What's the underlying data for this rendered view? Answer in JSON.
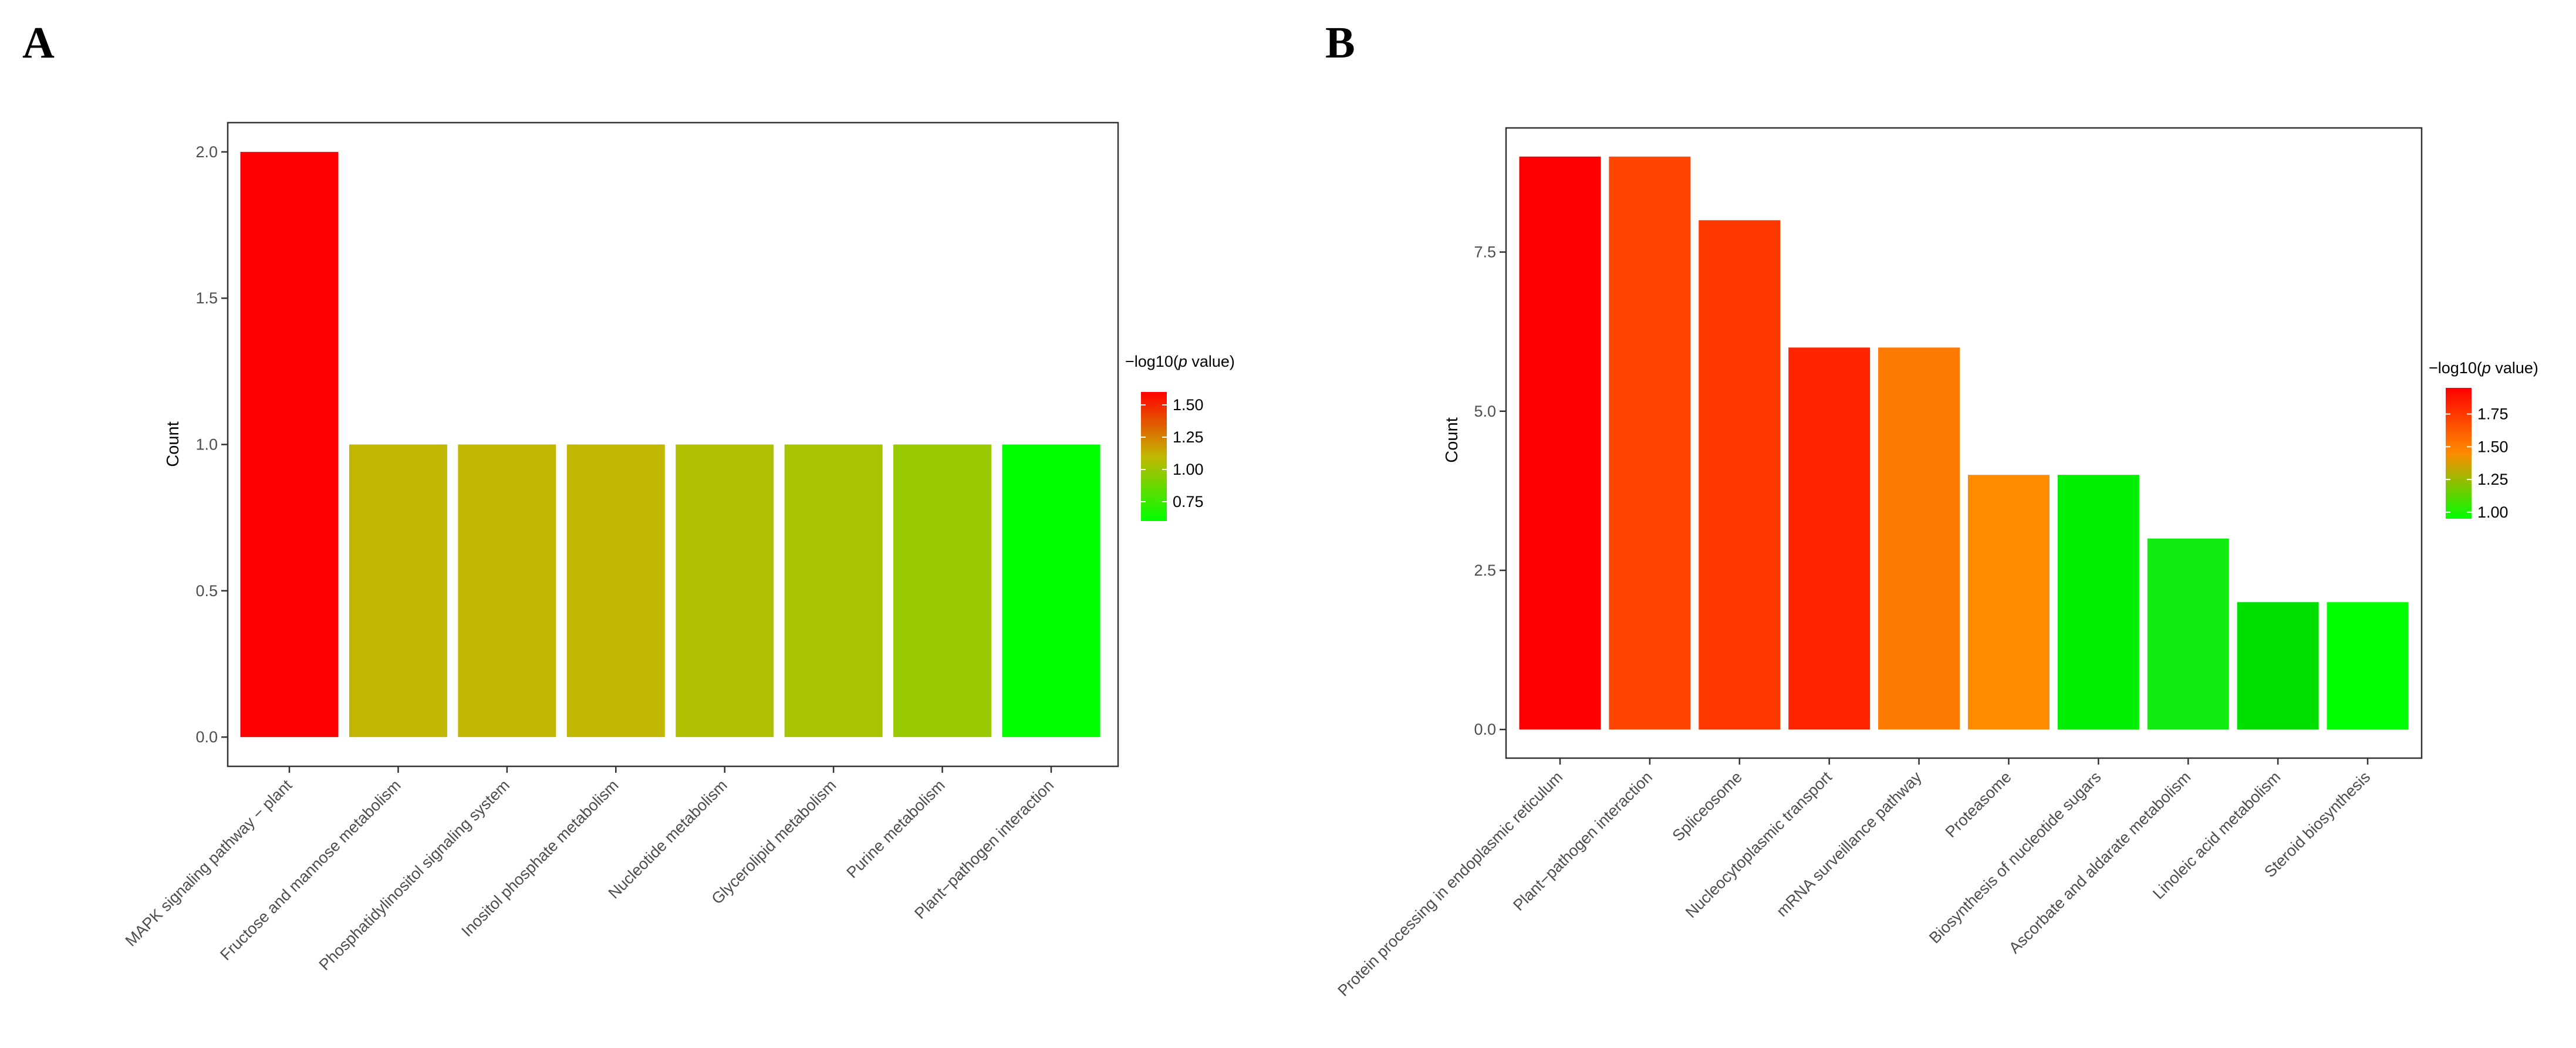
{
  "chart_data": [
    {
      "panel_label": "A",
      "type": "bar",
      "ylabel": "Count",
      "xlabel": "",
      "ylim": [
        -0.1,
        2.1
      ],
      "yticks": [
        0.0,
        0.5,
        1.0,
        1.5,
        2.0
      ],
      "ytick_labels": [
        "0.0",
        "0.5",
        "1.0",
        "1.5",
        "2.0"
      ],
      "grid": false,
      "categories": [
        "MAPK signaling pathway − plant",
        "Fructose and mannose metabolism",
        "Phosphatidylinositol signaling system",
        "Inositol phosphate metabolism",
        "Nucleotide metabolism",
        "Glycerolipid metabolism",
        "Purine metabolism",
        "Plant−pathogen interaction"
      ],
      "values": [
        2,
        1,
        1,
        1,
        1,
        1,
        1,
        1
      ],
      "bar_colors": [
        "#ff0000",
        "#c2b700",
        "#c2b700",
        "#c2b700",
        "#b0c000",
        "#a8c400",
        "#99c900",
        "#00ff00"
      ],
      "legend": {
        "title_prefix": "−log10(",
        "title_italic": "p",
        "title_suffix": " value)",
        "ticks": [
          1.5,
          1.25,
          1.0,
          0.75
        ],
        "tick_labels": [
          "1.50",
          "1.25",
          "1.00",
          "0.75"
        ],
        "range": [
          0.6,
          1.6
        ],
        "color_high": "#ff0000",
        "color_mid": "#c2b800",
        "color_low": "#00ff00",
        "placement": "right"
      }
    },
    {
      "panel_label": "B",
      "type": "bar",
      "ylabel": "Count",
      "xlabel": "",
      "ylim": [
        -0.45,
        9.45
      ],
      "yticks": [
        0.0,
        2.5,
        5.0,
        7.5
      ],
      "ytick_labels": [
        "0.0",
        "2.5",
        "5.0",
        "7.5"
      ],
      "grid": false,
      "categories": [
        "Protein processing in endoplasmic reticulum",
        "Plant−pathogen interaction",
        "Spliceosome",
        "Nucleocytoplasmic transport",
        "mRNA surveillance pathway",
        "Proteasome",
        "Biosynthesis of nucleotide sugars",
        "Ascorbate and aldarate metabolism",
        "Linoleic acid metabolism",
        "Steroid biosynthesis"
      ],
      "values": [
        9,
        9,
        8,
        6,
        6,
        4,
        4,
        3,
        2,
        2
      ],
      "bar_colors": [
        "#ff0000",
        "#ff4500",
        "#ff3800",
        "#ff2500",
        "#ff7a00",
        "#ff8c00",
        "#00ee00",
        "#10ec10",
        "#00e000",
        "#00ff00"
      ],
      "legend": {
        "title_prefix": "−log10(",
        "title_italic": "p",
        "title_suffix": " value)",
        "ticks": [
          1.75,
          1.5,
          1.25,
          1.0
        ],
        "tick_labels": [
          "1.75",
          "1.50",
          "1.25",
          "1.00"
        ],
        "range": [
          0.95,
          1.95
        ],
        "color_high": "#ff0000",
        "color_mid": "#ff8c00",
        "color_low": "#00ff00",
        "placement": "right"
      }
    }
  ]
}
